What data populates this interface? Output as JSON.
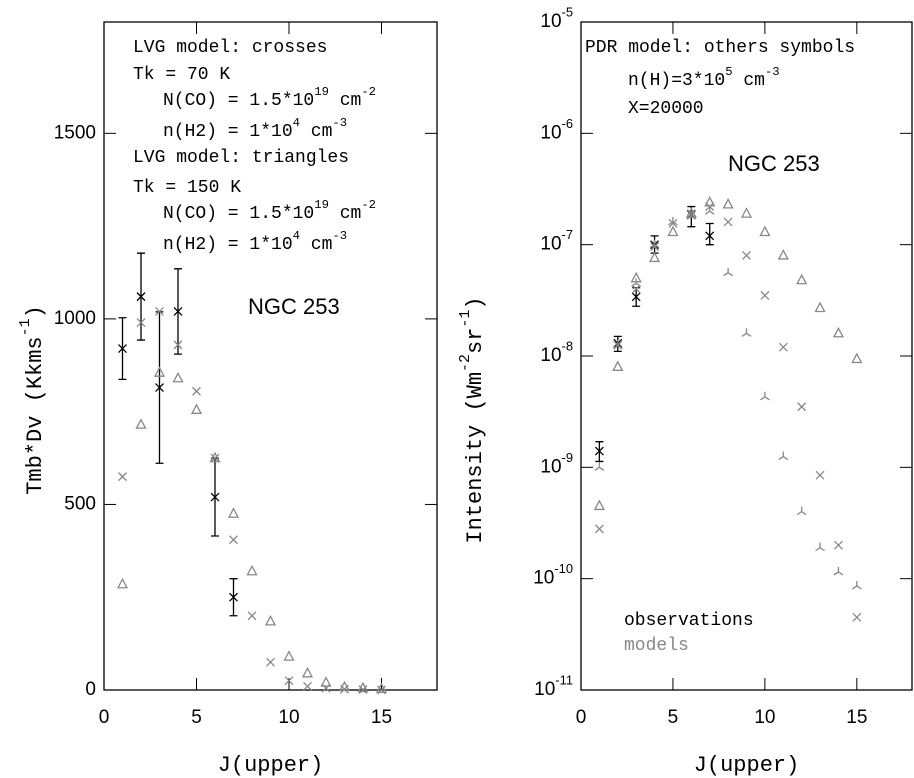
{
  "chart_data": [
    {
      "type": "scatter",
      "xlabel": "J(upper)",
      "ylabel": "Tmb*Dv (Kkms^{-1})",
      "xlim": [
        0,
        18
      ],
      "ylim": [
        0,
        1800
      ],
      "xticks": [
        0,
        5,
        10,
        15
      ],
      "yticks": [
        0,
        500,
        1000,
        1500
      ],
      "annotations": [
        "LVG model: crosses",
        "Tk = 70 K",
        "N(CO) = 1.5*10^{19} cm^{-2}",
        "n(H2) = 1*10^{4} cm^{-3}",
        "LVG model: triangles",
        "Tk = 150 K",
        "N(CO) = 1.5*10^{19} cm^{-2}",
        "n(H2) = 1*10^{4} cm^{-3}",
        "NGC 253"
      ],
      "series": [
        {
          "marker": "cross",
          "color": "#000000",
          "x": [
            1,
            2,
            3,
            4,
            6,
            7
          ],
          "values": [
            920,
            1060,
            815,
            1020,
            520,
            250
          ],
          "errors": [
            83,
            117,
            204,
            115,
            105,
            50
          ]
        },
        {
          "marker": "cross",
          "color": "#888888",
          "x": [
            1,
            2,
            3,
            4,
            5,
            6,
            7,
            8,
            9,
            10,
            11,
            12,
            13,
            14,
            15
          ],
          "values": [
            575,
            990,
            1020,
            930,
            805,
            625,
            405,
            200,
            75,
            25,
            10,
            5,
            2,
            1,
            0
          ]
        },
        {
          "marker": "triangle",
          "color": "#888888",
          "x": [
            1,
            2,
            3,
            4,
            5,
            6,
            7,
            8,
            9,
            10,
            11,
            12,
            13,
            14,
            15
          ],
          "values": [
            285,
            715,
            855,
            840,
            755,
            625,
            475,
            320,
            185,
            90,
            45,
            20,
            8,
            5,
            3
          ]
        }
      ]
    },
    {
      "type": "scatter",
      "xlabel": "J(upper)",
      "ylabel": "Intensity (Wm^{-2}sr^{-1})",
      "ylog": true,
      "xlim": [
        0,
        18
      ],
      "ylim": [
        1e-11,
        1e-05
      ],
      "xticks": [
        0,
        5,
        10,
        15
      ],
      "yticks": [
        {
          "value": 1e-11,
          "label": "10^{-11}"
        },
        {
          "value": 1e-10,
          "label": "10^{-10}"
        },
        {
          "value": 1e-09,
          "label": "10^{-9}"
        },
        {
          "value": 1e-08,
          "label": "10^{-8}"
        },
        {
          "value": 1e-07,
          "label": "10^{-7}"
        },
        {
          "value": 1e-06,
          "label": "10^{-6}"
        },
        {
          "value": 1e-05,
          "label": "10^{-5}"
        }
      ],
      "annotations": [
        "PDR model: others symbols",
        "n(H)=3*10^{5} cm^{-3}",
        "X=20000",
        "NGC 253"
      ],
      "legend": [
        {
          "text": "observations",
          "color": "#000000"
        },
        {
          "text": "models",
          "color": "#888888"
        }
      ],
      "series": [
        {
          "marker": "cross",
          "color": "#000000",
          "x": [
            1,
            2,
            3,
            4,
            6,
            7
          ],
          "values": [
            1.4e-09,
            1.3e-08,
            3.4e-08,
            1e-07,
            1.86e-07,
            1.2e-07
          ],
          "lower": [
            1.13e-09,
            1.1e-08,
            2.8e-08,
            8.4e-08,
            1.45e-07,
            1e-07
          ],
          "upper": [
            1.7e-09,
            1.5e-08,
            4.1e-08,
            1.2e-07,
            2.2e-07,
            1.55e-07
          ]
        },
        {
          "marker": "triangle",
          "color": "#888888",
          "x": [
            1,
            2,
            3,
            4,
            5,
            6,
            7,
            8,
            9,
            10,
            11,
            12,
            13,
            14,
            15
          ],
          "values": [
            4.5e-10,
            8e-09,
            5e-08,
            7.6e-08,
            1.3e-07,
            1.9e-07,
            2.4e-07,
            2.3e-07,
            1.9e-07,
            1.3e-07,
            8e-08,
            4.8e-08,
            2.7e-08,
            1.6e-08,
            9.4e-09
          ]
        },
        {
          "marker": "cross",
          "color": "#888888",
          "x": [
            1,
            2,
            3,
            4,
            5,
            6,
            7,
            8,
            9,
            10,
            11,
            12,
            13,
            14,
            15
          ],
          "values": [
            2.8e-10,
            1.25e-08,
            4e-08,
            9.6e-08,
            1.55e-07,
            1.9e-07,
            2.2e-07,
            1.6e-07,
            8e-08,
            3.5e-08,
            1.2e-08,
            3.5e-09,
            8.5e-10,
            2e-10,
            4.5e-11
          ]
        },
        {
          "marker": "spoke",
          "color": "#888888",
          "x": [
            1,
            2,
            3,
            4,
            5,
            6,
            7,
            8,
            9,
            10,
            11,
            12,
            13,
            14,
            15
          ],
          "values": [
            1e-09,
            1.25e-08,
            4.5e-08,
            1e-07,
            1.6e-07,
            1.8e-07,
            2e-07,
            5.6e-08,
            1.6e-08,
            4.3e-09,
            1.25e-09,
            4e-10,
            1.9e-10,
            1.15e-10,
            8.6e-11
          ]
        }
      ]
    }
  ]
}
